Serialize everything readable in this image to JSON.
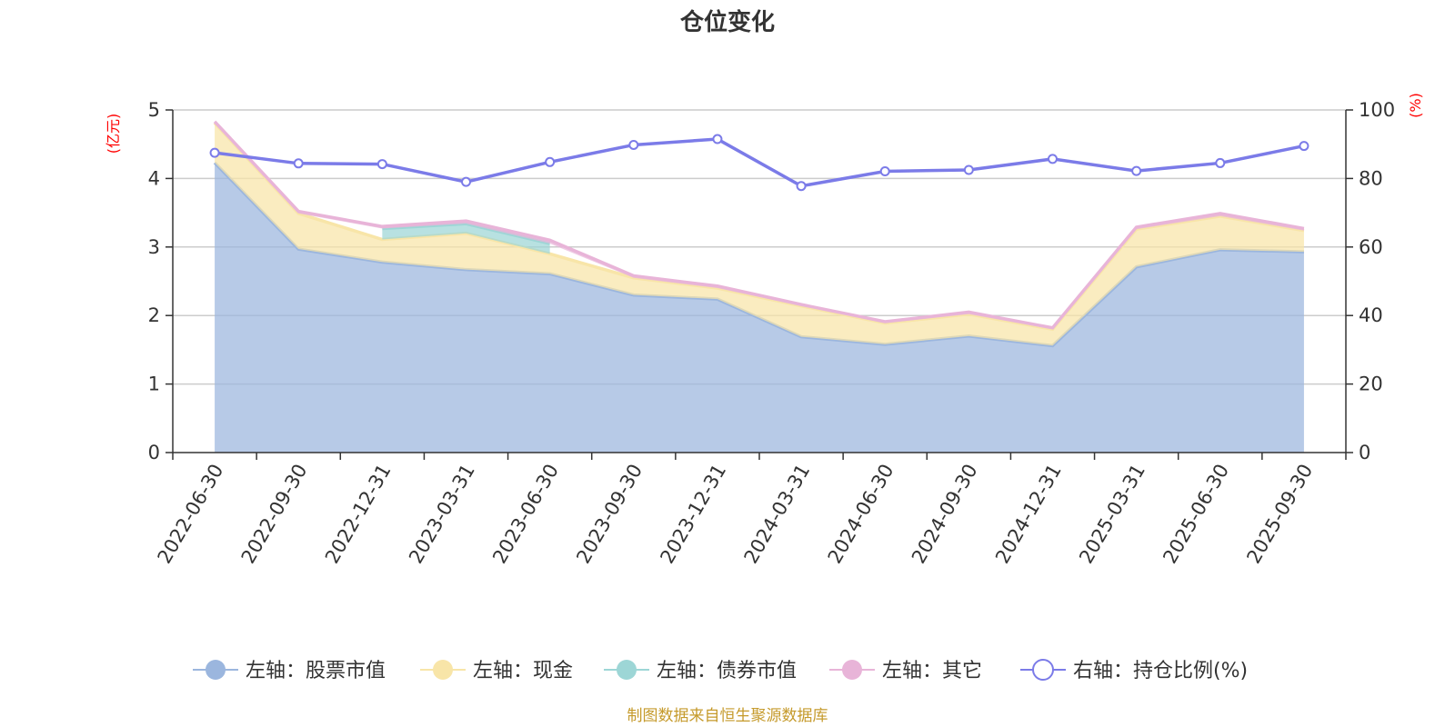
{
  "chart_data": {
    "type": "area",
    "title": "仓位变化",
    "left_axis_unit": "(亿元)",
    "right_axis_unit": "(%)",
    "ylim_left": [
      0,
      5
    ],
    "ylim_right": [
      0,
      100
    ],
    "left_ticks": [
      "0",
      "1",
      "2",
      "3",
      "4",
      "5"
    ],
    "right_ticks": [
      "0",
      "20",
      "40",
      "60",
      "80",
      "100"
    ],
    "categories": [
      "2022-06-30",
      "2022-09-30",
      "2022-12-31",
      "2023-03-31",
      "2023-06-30",
      "2023-09-30",
      "2023-12-31",
      "2024-03-31",
      "2024-06-30",
      "2024-09-30",
      "2024-12-31",
      "2025-03-31",
      "2025-06-30",
      "2025-09-30"
    ],
    "series": [
      {
        "name": "左轴：股票市值",
        "axis": "left",
        "type": "stacked-area",
        "color": "#9bb6de",
        "values": [
          4.23,
          2.97,
          2.78,
          2.67,
          2.61,
          2.3,
          2.24,
          1.69,
          1.58,
          1.7,
          1.56,
          2.71,
          2.96,
          2.93
        ]
      },
      {
        "name": "左轴：现金",
        "axis": "left",
        "type": "stacked-area",
        "color": "#f8e5a8",
        "values": [
          0.58,
          0.52,
          0.33,
          0.53,
          0.29,
          0.25,
          0.16,
          0.45,
          0.31,
          0.32,
          0.24,
          0.55,
          0.49,
          0.31
        ]
      },
      {
        "name": "左轴：债券市值",
        "axis": "left",
        "type": "stacked-area",
        "color": "#9dd6d6",
        "values": [
          null,
          null,
          0.16,
          0.14,
          0.15,
          null,
          null,
          null,
          null,
          null,
          null,
          null,
          null,
          null
        ]
      },
      {
        "name": "左轴：其它",
        "axis": "left",
        "type": "stacked-area",
        "color": "#e8b4d8",
        "values": [
          0.02,
          0.03,
          0.03,
          0.04,
          0.05,
          0.03,
          0.03,
          0.02,
          0.02,
          0.03,
          0.02,
          0.03,
          0.04,
          0.03
        ]
      },
      {
        "name": "右轴：持仓比例(%)",
        "axis": "right",
        "type": "line",
        "color": "#7b7be8",
        "values": [
          87.5,
          84.4,
          84.2,
          79.0,
          84.8,
          89.8,
          91.5,
          77.8,
          82.1,
          82.5,
          85.7,
          82.2,
          84.5,
          89.5
        ]
      }
    ],
    "legend_position": "bottom",
    "grid": true,
    "source_note": "制图数据来自恒生聚源数据库"
  }
}
